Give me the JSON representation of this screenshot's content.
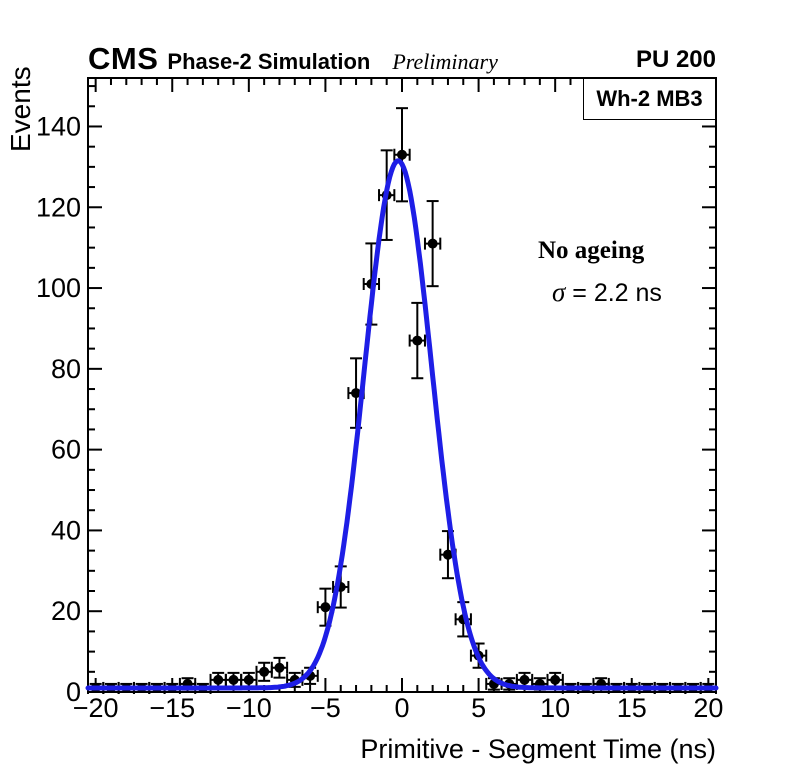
{
  "header": {
    "experiment": "CMS",
    "label": "Phase-2 Simulation",
    "sublabel": "Preliminary",
    "pileup": "PU 200"
  },
  "stats_box": {
    "label": "Wh-2 MB3"
  },
  "annotation": {
    "line1": "No ageing",
    "sigma_symbol": "σ",
    "sigma_value": " = 2.2 ns"
  },
  "colors": {
    "fit_curve": "#1e1ee6",
    "marker": "#000000",
    "frame": "#000000"
  },
  "chart_data": {
    "type": "scatter",
    "subtype": "histogram-points-with-gaussian-fit",
    "xlabel": "Primitive - Segment Time (ns)",
    "ylabel": "Events",
    "xlim": [
      -20.5,
      20.5
    ],
    "ylim": [
      0,
      152
    ],
    "x_major_ticks": [
      -20,
      -15,
      -10,
      -5,
      0,
      5,
      10,
      15,
      20
    ],
    "x_minor_step": 1,
    "y_major_ticks": [
      0,
      20,
      40,
      60,
      80,
      100,
      120,
      140
    ],
    "y_minor_step": 5,
    "grid": false,
    "legend_position": "none",
    "bin_width": 1,
    "x": [
      -20,
      -19,
      -18,
      -17,
      -16,
      -15,
      -14,
      -13,
      -12,
      -11,
      -10,
      -9,
      -8,
      -7,
      -6,
      -5,
      -4,
      -3,
      -2,
      -1,
      0,
      1,
      2,
      3,
      4,
      5,
      6,
      7,
      8,
      9,
      10,
      11,
      12,
      13,
      14,
      15,
      16,
      17,
      18,
      19,
      20
    ],
    "y": [
      1,
      1,
      1,
      1,
      1,
      1,
      2,
      1,
      3,
      3,
      3,
      5,
      6,
      3,
      4,
      21,
      26,
      74,
      101,
      123,
      133,
      87,
      111,
      34,
      18,
      9,
      2,
      2,
      3,
      2,
      3,
      1,
      1,
      2,
      1,
      1,
      1,
      1,
      1,
      1,
      1
    ],
    "x_error": 0.5,
    "y_error": "sqrt(n)",
    "fit": {
      "shape": "gaussian",
      "amplitude": 130.5,
      "mean": -0.25,
      "sigma": 2.2,
      "constant": 1.0,
      "sigma_label": "σ = 2.2 ns"
    }
  }
}
